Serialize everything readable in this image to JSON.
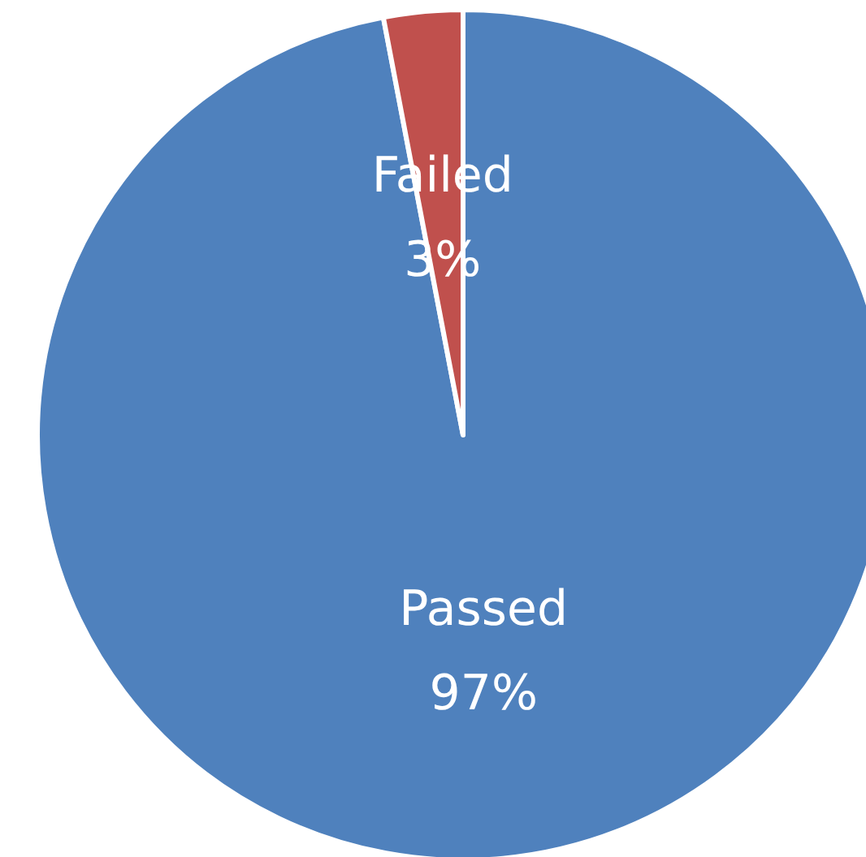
{
  "chart_data": {
    "type": "pie",
    "categories": [
      "Passed",
      "Failed"
    ],
    "values": [
      97,
      3
    ],
    "colors": [
      "#4f81bd",
      "#c0504d"
    ],
    "value_labels": [
      "97%",
      "3%"
    ]
  }
}
